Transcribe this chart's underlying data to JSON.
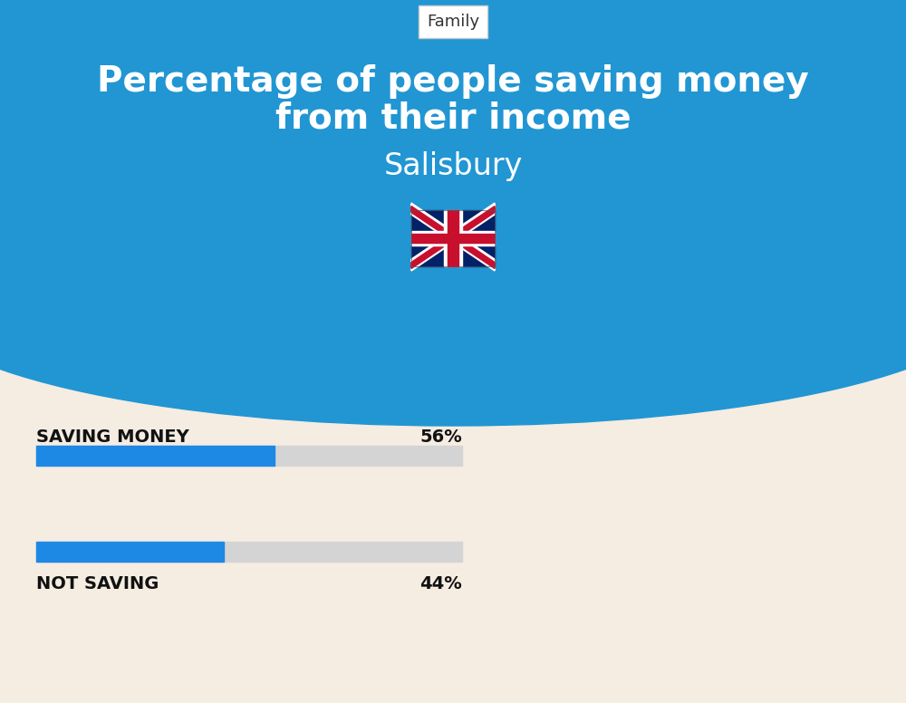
{
  "title_line1": "Percentage of people saving money",
  "title_line2": "from their income",
  "subtitle": "Salisbury",
  "tag": "Family",
  "saving_label": "SAVING MONEY",
  "saving_value": 56,
  "saving_text": "56%",
  "not_saving_label": "NOT SAVING",
  "not_saving_value": 44,
  "not_saving_text": "44%",
  "bg_top_color": "#2196d3",
  "bg_bottom_color": "#f5ece2",
  "bar_filled_color": "#1e88e5",
  "bar_empty_color": "#d4d4d4",
  "title_color": "#ffffff",
  "subtitle_color": "#ffffff",
  "label_color": "#111111",
  "tag_bg_color": "#ffffff",
  "tag_text_color": "#333333",
  "flag_image": "🇬🇧"
}
